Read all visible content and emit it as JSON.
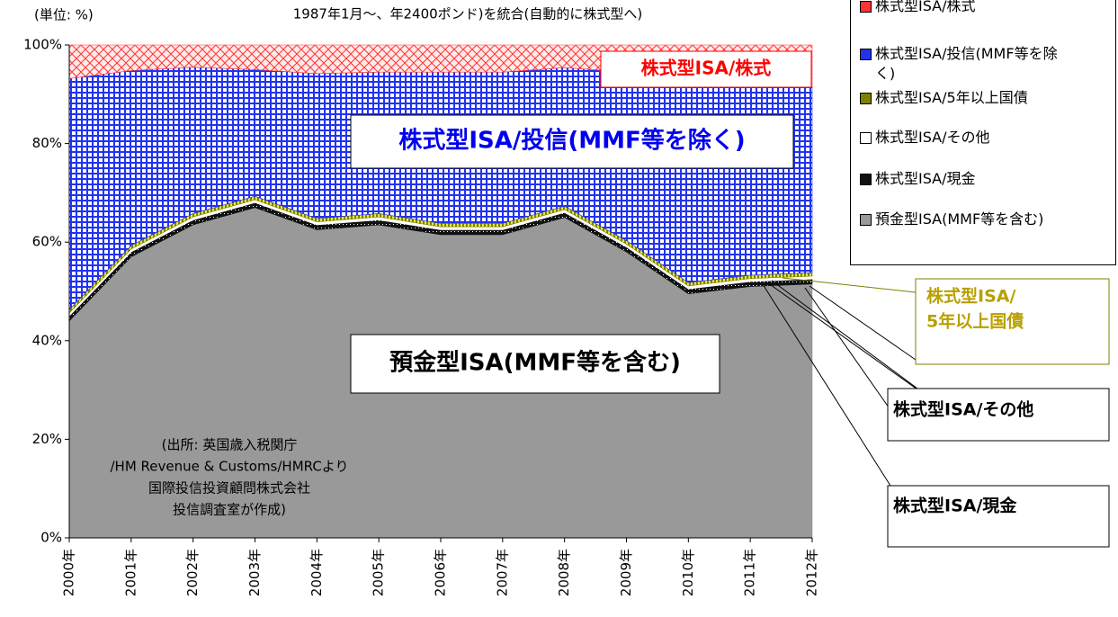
{
  "chart_data": {
    "type": "stacked_area",
    "subtitle": "1987年1月〜、年2400ポンド)を統合(自動的に株式型へ)",
    "y_unit_label": "(単位: %)",
    "categories": [
      "2000年",
      "2001年",
      "2002年",
      "2003年",
      "2004年",
      "2005年",
      "2006年",
      "2007年",
      "2008年",
      "2009年",
      "2010年",
      "2011年",
      "2012年"
    ],
    "series": [
      {
        "name": "預金型ISA(MMF等を含む)",
        "color": "#999999",
        "values": [
          44,
          57,
          63.5,
          67,
          62.5,
          63.5,
          61.5,
          61.5,
          65,
          58,
          49.5,
          51,
          51.5
        ]
      },
      {
        "name": "株式型ISA/現金",
        "color": "#111111",
        "values": [
          1,
          1,
          1,
          1,
          1,
          1,
          1,
          1,
          1,
          1,
          1,
          1,
          1
        ]
      },
      {
        "name": "株式型ISA/その他",
        "color": "#ffffff",
        "values": [
          0.6,
          0.6,
          0.6,
          0.6,
          0.6,
          0.6,
          0.6,
          0.6,
          0.6,
          0.6,
          0.6,
          0.6,
          0.6
        ]
      },
      {
        "name": "株式型ISA/5年以上国債",
        "color": "#808000",
        "values": [
          0.7,
          0.7,
          0.7,
          0.7,
          0.7,
          0.7,
          0.7,
          0.7,
          0.7,
          0.7,
          0.7,
          0.7,
          0.7
        ]
      },
      {
        "name": "株式型ISA/投信(MMF等を除く)",
        "color": "#2233ee",
        "values": [
          46.9,
          35.5,
          29.7,
          25.7,
          29.4,
          28.7,
          30.7,
          30.7,
          28.1,
          34.2,
          41.2,
          38.7,
          37.7
        ]
      },
      {
        "name": "株式型ISA/株式",
        "color": "#ff3333",
        "values": [
          6.8,
          5.2,
          4.5,
          5,
          5.8,
          5.5,
          5.5,
          5.5,
          4.6,
          5.5,
          7,
          8,
          8.5
        ]
      }
    ],
    "ylim": [
      0,
      100
    ],
    "yticks": [
      {
        "value": 0,
        "label": "0%"
      },
      {
        "value": 20,
        "label": "20%"
      },
      {
        "value": 40,
        "label": "40%"
      },
      {
        "value": 60,
        "label": "60%"
      },
      {
        "value": 80,
        "label": "80%"
      },
      {
        "value": 100,
        "label": "100%"
      }
    ],
    "annotations": [
      {
        "lines": [
          "株式型ISA/株式"
        ]
      },
      {
        "lines": [
          "株式型ISA/投信(MMF等を除く)"
        ]
      },
      {
        "lines": [
          "預金型ISA(MMF等を含む)"
        ]
      },
      {
        "lines": [
          "(出所: 英国歳入税関庁",
          "/HM Revenue & Customs/HMRCより",
          "国際投信投資顧問株式会社",
          "投信調査室が作成)"
        ]
      },
      {
        "lines": [
          "株式型ISA/",
          "5年以上国債"
        ]
      },
      {
        "lines": [
          "株式型ISA/その他"
        ]
      },
      {
        "lines": [
          "株式型ISA/現金"
        ]
      }
    ]
  }
}
